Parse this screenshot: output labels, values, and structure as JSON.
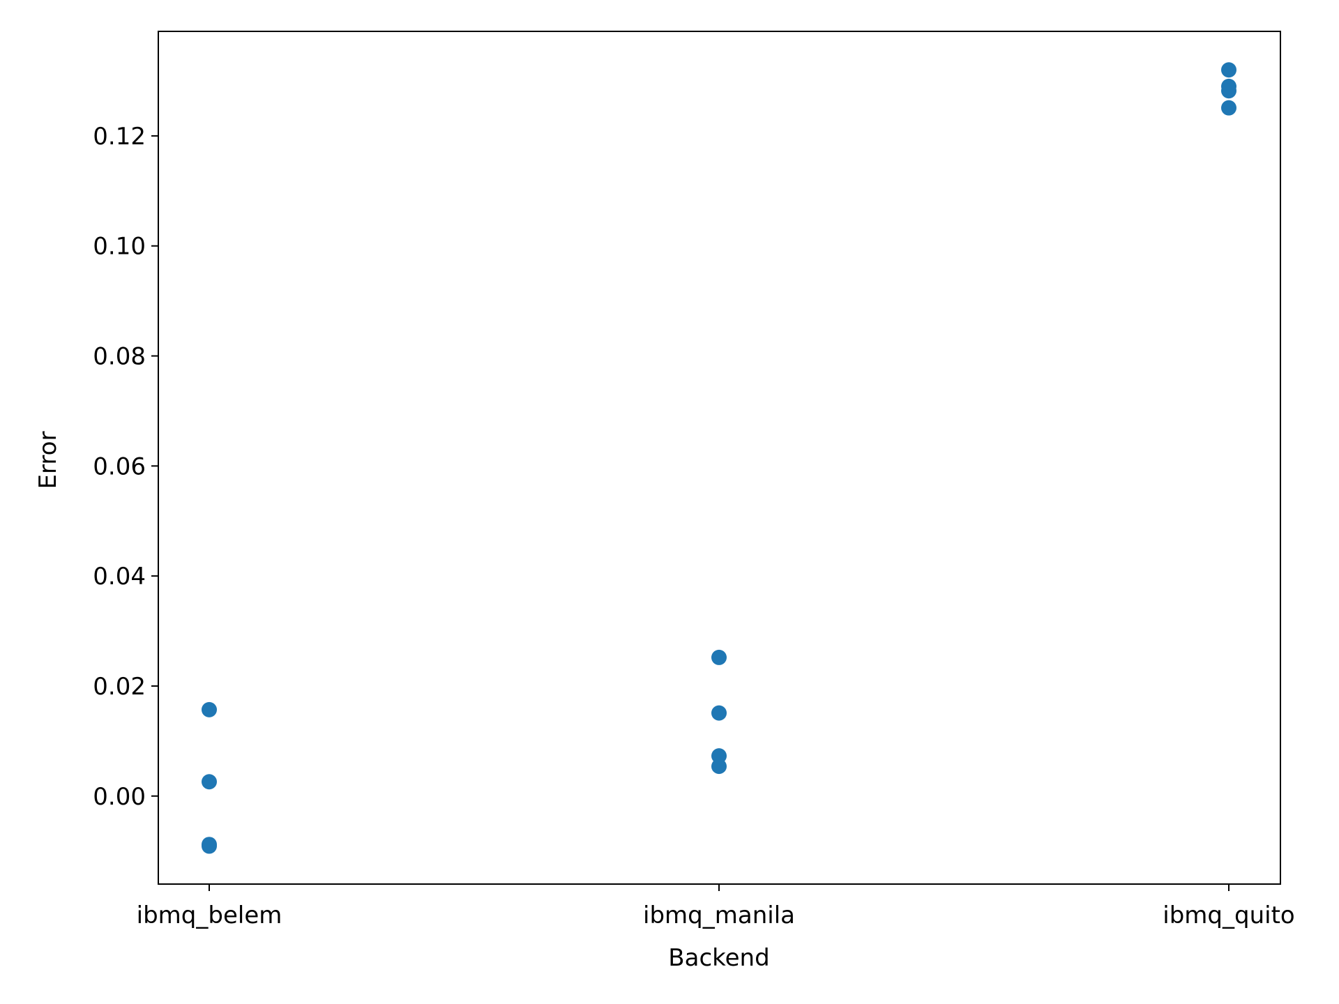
{
  "chart_data": {
    "type": "scatter",
    "title": "",
    "xlabel": "Backend",
    "ylabel": "Error",
    "categories": [
      "ibmq_belem",
      "ibmq_manila",
      "ibmq_quito"
    ],
    "y_ticks": [
      0.0,
      0.02,
      0.04,
      0.06,
      0.08,
      0.1,
      0.12
    ],
    "y_tick_labels": [
      "0.00",
      "0.02",
      "0.04",
      "0.06",
      "0.08",
      "0.10",
      "0.12"
    ],
    "ylim": [
      -0.016,
      0.139
    ],
    "grid": false,
    "marker_color": "#1f77b4",
    "points": [
      {
        "x": "ibmq_belem",
        "y": 0.0157
      },
      {
        "x": "ibmq_belem",
        "y": 0.0026
      },
      {
        "x": "ibmq_belem",
        "y": -0.0088
      },
      {
        "x": "ibmq_belem",
        "y": -0.0091
      },
      {
        "x": "ibmq_manila",
        "y": 0.0252
      },
      {
        "x": "ibmq_manila",
        "y": 0.0151
      },
      {
        "x": "ibmq_manila",
        "y": 0.0073
      },
      {
        "x": "ibmq_manila",
        "y": 0.0054
      },
      {
        "x": "ibmq_quito",
        "y": 0.132
      },
      {
        "x": "ibmq_quito",
        "y": 0.129
      },
      {
        "x": "ibmq_quito",
        "y": 0.1282
      },
      {
        "x": "ibmq_quito",
        "y": 0.1251
      }
    ]
  }
}
